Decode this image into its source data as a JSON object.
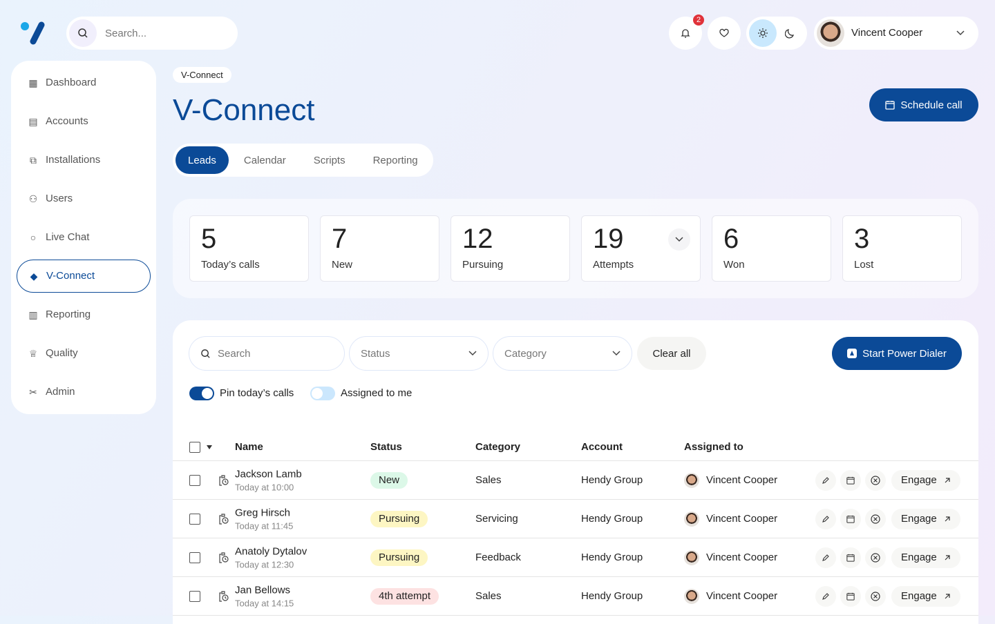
{
  "topbar": {
    "search_placeholder": "Search...",
    "notifications_count": "2",
    "user_name": "Vincent Cooper"
  },
  "sidebar": {
    "items": [
      {
        "label": "Dashboard",
        "icon": "dashboard-icon"
      },
      {
        "label": "Accounts",
        "icon": "accounts-icon"
      },
      {
        "label": "Installations",
        "icon": "installations-icon"
      },
      {
        "label": "Users",
        "icon": "users-icon"
      },
      {
        "label": "Live Chat",
        "icon": "chat-icon"
      },
      {
        "label": "V-Connect",
        "icon": "vconnect-icon",
        "active": true
      },
      {
        "label": "Reporting",
        "icon": "chart-icon"
      },
      {
        "label": "Quality",
        "icon": "quality-icon"
      },
      {
        "label": "Admin",
        "icon": "admin-icon"
      }
    ]
  },
  "header": {
    "breadcrumb": "V-Connect",
    "title": "V-Connect",
    "schedule_label": "Schedule call"
  },
  "tabs": [
    {
      "label": "Leads",
      "active": true
    },
    {
      "label": "Calendar"
    },
    {
      "label": "Scripts"
    },
    {
      "label": "Reporting"
    }
  ],
  "stats": [
    {
      "value": "5",
      "label": "Today’s calls"
    },
    {
      "value": "7",
      "label": "New"
    },
    {
      "value": "12",
      "label": "Pursuing"
    },
    {
      "value": "19",
      "label": "Attempts"
    },
    {
      "value": "6",
      "label": "Won"
    },
    {
      "value": "3",
      "label": "Lost"
    }
  ],
  "filters": {
    "search_placeholder": "Search",
    "status_placeholder": "Status",
    "category_placeholder": "Category",
    "clear_label": "Clear all",
    "dialer_label": "Start Power Dialer",
    "pin_label": "Pin today’s calls",
    "pin_on": true,
    "assigned_label": "Assigned to me",
    "assigned_on": false
  },
  "table": {
    "columns": [
      "Name",
      "Status",
      "Category",
      "Account",
      "Assigned to"
    ],
    "engage_label": "Engage",
    "rows": [
      {
        "name": "Jackson Lamb",
        "time": "Today at 10:00",
        "status": "New",
        "status_color": "#dcf8e8",
        "category": "Sales",
        "account": "Hendy Group",
        "assigned": "Vincent Cooper"
      },
      {
        "name": "Greg Hirsch",
        "time": "Today at 11:45",
        "status": "Pursuing",
        "status_color": "#fdf6c3",
        "category": "Servicing",
        "account": "Hendy Group",
        "assigned": "Vincent Cooper"
      },
      {
        "name": "Anatoly Dytalov",
        "time": "Today at 12:30",
        "status": "Pursuing",
        "status_color": "#fdf6c3",
        "category": "Feedback",
        "account": "Hendy Group",
        "assigned": "Vincent Cooper"
      },
      {
        "name": "Jan Bellows",
        "time": "Today at 14:15",
        "status": "4th attempt",
        "status_color": "#fde2e2",
        "category": "Sales",
        "account": "Hendy Group",
        "assigned": "Vincent Cooper"
      }
    ]
  },
  "colors": {
    "primary": "#0b4a97",
    "accent": "#1aa7e8",
    "badge": "#e0323a"
  }
}
